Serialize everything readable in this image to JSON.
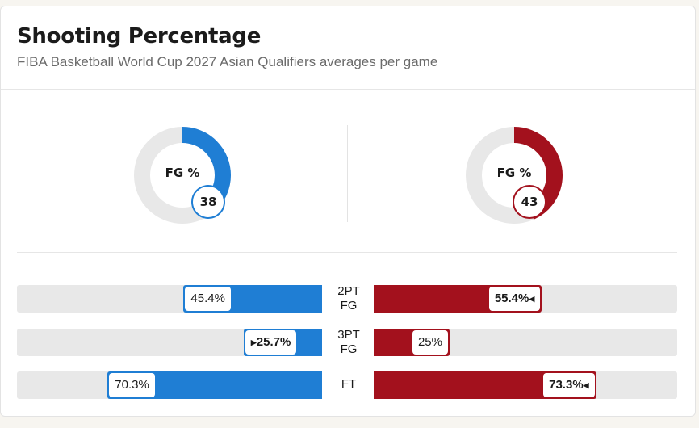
{
  "header": {
    "title": "Shooting Percentage",
    "subtitle": "FIBA Basketball World Cup 2027 Asian Qualifiers averages per game"
  },
  "colors": {
    "home": "#1f7ed4",
    "away": "#a3111d",
    "track": "#e8e8e8"
  },
  "donuts": {
    "home": {
      "label": "FG %",
      "value": "38",
      "fraction": 0.38
    },
    "away": {
      "label": "FG %",
      "value": "43",
      "fraction": 0.43
    }
  },
  "bars": [
    {
      "line1": "2PT",
      "line2": "FG",
      "home": "45.4%",
      "home_value": 45.4,
      "away": "55.4%",
      "away_value": 55.4,
      "leader": "away"
    },
    {
      "line1": "3PT",
      "line2": "FG",
      "home": "25.7%",
      "home_value": 25.7,
      "away": "25%",
      "away_value": 25,
      "leader": "home"
    },
    {
      "line1": "FT",
      "line2": "",
      "home": "70.3%",
      "home_value": 70.3,
      "away": "73.3%",
      "away_value": 73.3,
      "leader": "away"
    }
  ]
}
